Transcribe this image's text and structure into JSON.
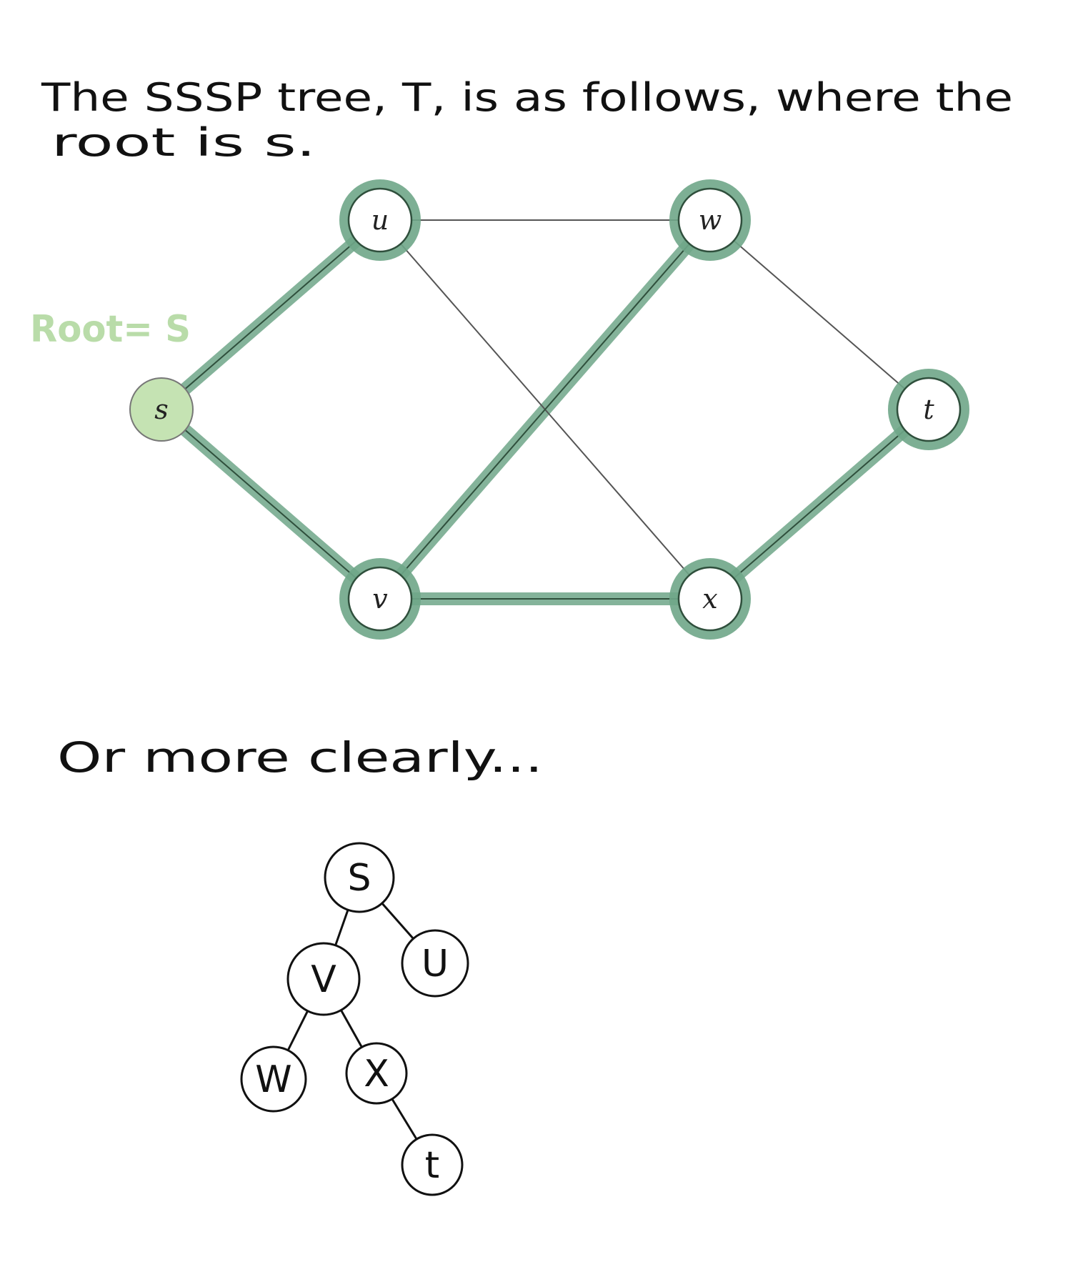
{
  "intro": {
    "line1": "The SSSP tree, T, is as follows, where the",
    "line2": "root is  s."
  },
  "annotation": {
    "root_label": "Root= S"
  },
  "graph": {
    "nodes": [
      {
        "id": "s",
        "label": "s",
        "fill": "#c5e3b3"
      },
      {
        "id": "u",
        "label": "u"
      },
      {
        "id": "w",
        "label": "w"
      },
      {
        "id": "t",
        "label": "t"
      },
      {
        "id": "v",
        "label": "v"
      },
      {
        "id": "x",
        "label": "x"
      }
    ],
    "edges": [
      {
        "from": "s",
        "to": "u",
        "in_tree": true
      },
      {
        "from": "s",
        "to": "v",
        "in_tree": true
      },
      {
        "from": "u",
        "to": "w",
        "in_tree": false
      },
      {
        "from": "u",
        "to": "x",
        "in_tree": false
      },
      {
        "from": "w",
        "to": "v",
        "in_tree": true
      },
      {
        "from": "w",
        "to": "t",
        "in_tree": false
      },
      {
        "from": "v",
        "to": "x",
        "in_tree": true
      },
      {
        "from": "x",
        "to": "t",
        "in_tree": true
      }
    ]
  },
  "subtitle": "Or more clearly...",
  "tree": {
    "nodes": [
      {
        "id": "S",
        "label": "S"
      },
      {
        "id": "V",
        "label": "V"
      },
      {
        "id": "U",
        "label": "U"
      },
      {
        "id": "W",
        "label": "W"
      },
      {
        "id": "X",
        "label": "X"
      },
      {
        "id": "T",
        "label": "t"
      }
    ],
    "edges": [
      {
        "from": "S",
        "to": "V"
      },
      {
        "from": "S",
        "to": "U"
      },
      {
        "from": "V",
        "to": "W"
      },
      {
        "from": "V",
        "to": "X"
      },
      {
        "from": "X",
        "to": "T"
      }
    ]
  },
  "colors": {
    "highlight": "#6fa688",
    "root_label": "#b9dca9",
    "root_fill": "#c5e3b3",
    "ink": "#111111",
    "graph_edge": "#555555"
  }
}
